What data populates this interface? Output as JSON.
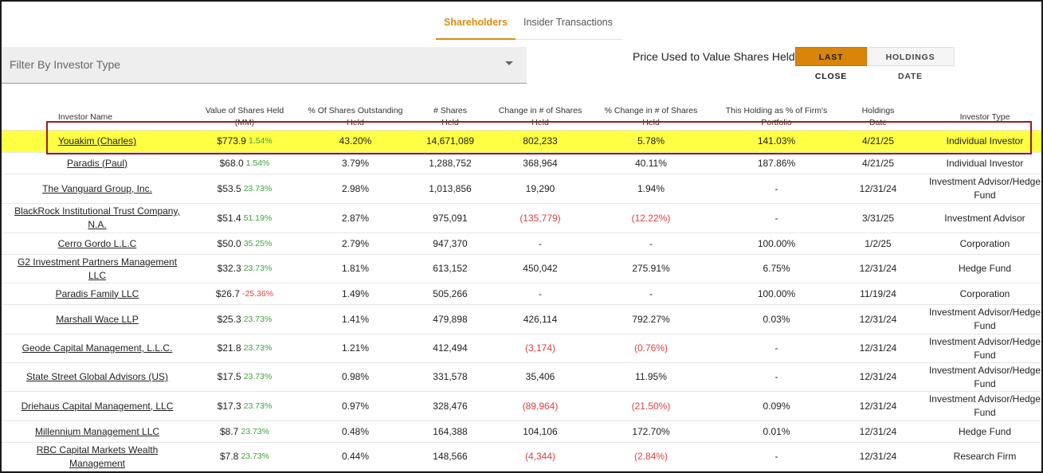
{
  "tabs": [
    {
      "label": "Shareholders"
    },
    {
      "label": "Insider Transactions"
    }
  ],
  "filter": {
    "placeholder": "Filter By Investor Type"
  },
  "price": {
    "label": "Price Used to Value Shares Held:",
    "options": [
      "LAST CLOSE",
      "HOLDINGS DATE"
    ]
  },
  "table": {
    "headers": [
      [
        "Investor Name",
        ""
      ],
      [
        "Value of Shares Held",
        "(MM)"
      ],
      [
        "% Of Shares Outstanding",
        "Held"
      ],
      [
        "# Shares",
        "Held"
      ],
      [
        "Change in # of Shares",
        "Held"
      ],
      [
        "% Change in # of Shares",
        "Held"
      ],
      [
        "This Holding as % of Firm's",
        "Portfolio"
      ],
      [
        "Holdings",
        "Date"
      ],
      [
        "Investor Type",
        ""
      ]
    ],
    "rows": [
      {
        "name": "Youakim (Charles)",
        "value": "$773.9",
        "value_chg": "1.54%",
        "pct_out": "43.20%",
        "shares": "14,671,089",
        "change": "802,233",
        "pct_change": "5.78%",
        "portfolio": "141.03%",
        "date": "4/21/25",
        "type": "Individual Investor"
      },
      {
        "name": "Paradis (Paul)",
        "value": "$68.0",
        "value_chg": "1.54%",
        "pct_out": "3.79%",
        "shares": "1,288,752",
        "change": "368,964",
        "pct_change": "40.11%",
        "portfolio": "187.86%",
        "date": "4/21/25",
        "type": "Individual Investor"
      },
      {
        "name": "The Vanguard Group, Inc.",
        "value": "$53.5",
        "value_chg": "23.73%",
        "pct_out": "2.98%",
        "shares": "1,013,856",
        "change": "19,290",
        "pct_change": "1.94%",
        "portfolio": "-",
        "date": "12/31/24",
        "type": "Investment Advisor/Hedge Fund"
      },
      {
        "name": "BlackRock Institutional Trust Company, N.A.",
        "value": "$51.4",
        "value_chg": "51.19%",
        "pct_out": "2.87%",
        "shares": "975,091",
        "change": "(135,779)",
        "pct_change": "(12.22%)",
        "portfolio": "-",
        "date": "3/31/25",
        "type": "Investment Advisor"
      },
      {
        "name": "Cerro Gordo L.L.C",
        "value": "$50.0",
        "value_chg": "35.25%",
        "pct_out": "2.79%",
        "shares": "947,370",
        "change": "-",
        "pct_change": "-",
        "portfolio": "100.00%",
        "date": "1/2/25",
        "type": "Corporation"
      },
      {
        "name": "G2 Investment Partners Management LLC",
        "value": "$32.3",
        "value_chg": "23.73%",
        "pct_out": "1.81%",
        "shares": "613,152",
        "change": "450,042",
        "pct_change": "275.91%",
        "portfolio": "6.75%",
        "date": "12/31/24",
        "type": "Hedge Fund"
      },
      {
        "name": "Paradis Family LLC",
        "value": "$26.7",
        "value_chg": "-25.36%",
        "pct_out": "1.49%",
        "shares": "505,266",
        "change": "-",
        "pct_change": "-",
        "portfolio": "100.00%",
        "date": "11/19/24",
        "type": "Corporation"
      },
      {
        "name": "Marshall Wace LLP",
        "value": "$25.3",
        "value_chg": "23.73%",
        "pct_out": "1.41%",
        "shares": "479,898",
        "change": "426,114",
        "pct_change": "792.27%",
        "portfolio": "0.03%",
        "date": "12/31/24",
        "type": "Investment Advisor/Hedge Fund"
      },
      {
        "name": "Geode Capital Management, L.L.C.",
        "value": "$21.8",
        "value_chg": "23.73%",
        "pct_out": "1.21%",
        "shares": "412,494",
        "change": "(3,174)",
        "pct_change": "(0.76%)",
        "portfolio": "-",
        "date": "12/31/24",
        "type": "Investment Advisor/Hedge Fund"
      },
      {
        "name": "State Street Global Advisors (US)",
        "value": "$17.5",
        "value_chg": "23.73%",
        "pct_out": "0.98%",
        "shares": "331,578",
        "change": "35,406",
        "pct_change": "11.95%",
        "portfolio": "-",
        "date": "12/31/24",
        "type": "Investment Advisor/Hedge Fund"
      },
      {
        "name": "Driehaus Capital Management, LLC",
        "value": "$17.3",
        "value_chg": "23.73%",
        "pct_out": "0.97%",
        "shares": "328,476",
        "change": "(89,964)",
        "pct_change": "(21.50%)",
        "portfolio": "0.09%",
        "date": "12/31/24",
        "type": "Investment Advisor/Hedge Fund"
      },
      {
        "name": "Millennium Management LLC",
        "value": "$8.7",
        "value_chg": "23.73%",
        "pct_out": "0.48%",
        "shares": "164,388",
        "change": "104,106",
        "pct_change": "172.70%",
        "portfolio": "0.01%",
        "date": "12/31/24",
        "type": "Hedge Fund"
      },
      {
        "name": "RBC Capital Markets Wealth Management",
        "value": "$7.8",
        "value_chg": "23.73%",
        "pct_out": "0.44%",
        "shares": "148,566",
        "change": "(4,344)",
        "pct_change": "(2.84%)",
        "portfolio": "-",
        "date": "12/31/24",
        "type": "Research Firm"
      }
    ]
  },
  "colors": {
    "accent": "#e08a0a",
    "positive": "#3aa53a",
    "negative": "#e04040",
    "highlight": "#ffff44",
    "highlight_border": "#9e1b1b"
  }
}
